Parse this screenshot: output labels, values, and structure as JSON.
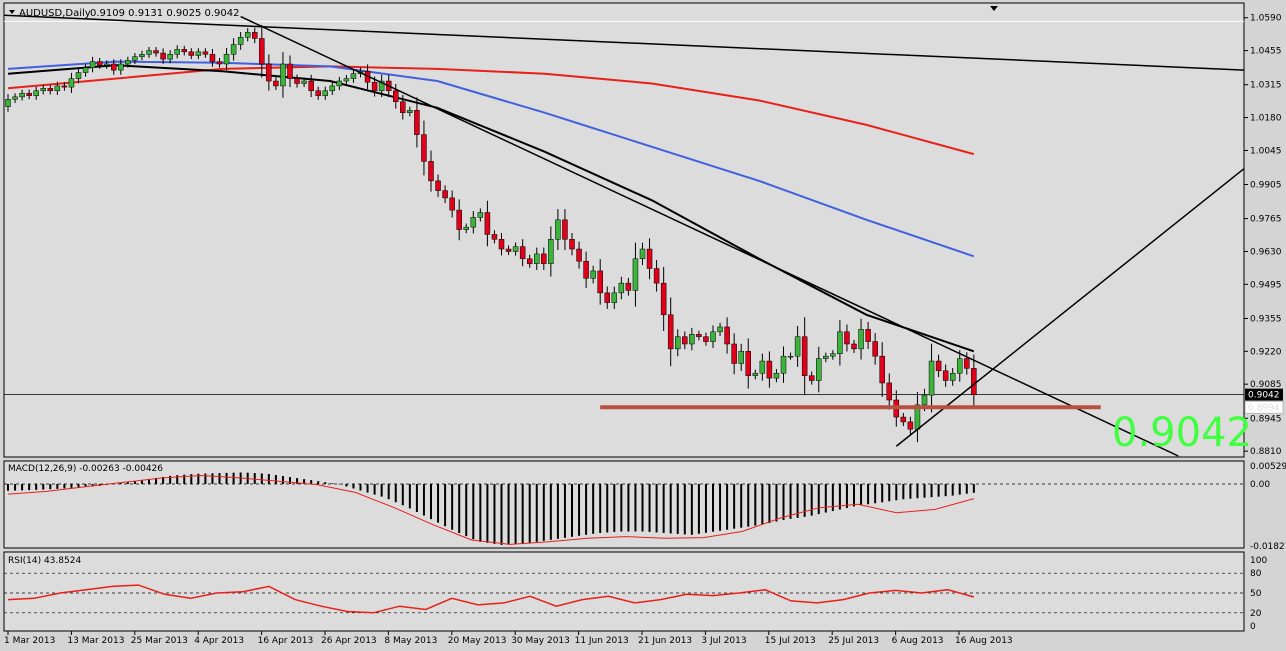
{
  "colors": {
    "panel_bg": "#dcdcdc",
    "frame": "#000000",
    "bull": "#3cb43c",
    "bear": "#e0001a",
    "ma_red": "#e8201a",
    "ma_blue": "#4060e0",
    "ma_black": "#000000",
    "support": "#b85040",
    "price_label": "#40ff40",
    "macd_signal": "#e8201a",
    "rsi_line": "#e8201a",
    "label_box": "#000000"
  },
  "header": {
    "title": "AUDUSD,Daily",
    "ohlc": "0.9109 0.9131 0.9025 0.9042",
    "menu_icon": "triangle-down-icon",
    "marker_icon": "triangle-down-icon"
  },
  "price_axis": {
    "ticks": [
      "1.0590",
      "1.0455",
      "1.0315",
      "1.0180",
      "1.0045",
      "0.9905",
      "0.9765",
      "0.9630",
      "0.9495",
      "0.9355",
      "0.9220",
      "0.9085",
      "0.8945",
      "0.8810"
    ],
    "current_label": "0.9042",
    "hidden_label": "0.8994"
  },
  "big_price": "0.9042",
  "macd": {
    "label": "MACD(12,26,9) -0.00263 -0.00426",
    "ticks": [
      "0.00529",
      "0.00",
      "-0.01827"
    ]
  },
  "rsi": {
    "label": "RSI(14) 43.8524",
    "ticks": [
      "100",
      "80",
      "50",
      "20",
      "0"
    ]
  },
  "time_axis": {
    "labels": [
      "1 Mar 2013",
      "13 Mar 2013",
      "25 Mar 2013",
      "4 Apr 2013",
      "16 Apr 2013",
      "26 Apr 2013",
      "8 May 2013",
      "20 May 2013",
      "30 May 2013",
      "11 Jun 2013",
      "21 Jun 2013",
      "3 Jul 2013",
      "15 Jul 2013",
      "25 Jul 2013",
      "6 Aug 2013",
      "16 Aug 2013"
    ]
  },
  "chart_data": {
    "type": "candlestick",
    "symbol": "AUDUSD",
    "timeframe": "Daily",
    "ylim": [
      0.879,
      1.063
    ],
    "dates_shown": [
      "1 Mar 2013",
      "13 Mar 2013",
      "25 Mar 2013",
      "4 Apr 2013",
      "16 Apr 2013",
      "26 Apr 2013",
      "8 May 2013",
      "20 May 2013",
      "30 May 2013",
      "11 Jun 2013",
      "21 Jun 2013",
      "3 Jul 2013",
      "15 Jul 2013",
      "25 Jul 2013",
      "6 Aug 2013",
      "16 Aug 2013"
    ],
    "close": [
      1.0255,
      1.0265,
      1.028,
      1.027,
      1.029,
      1.03,
      1.029,
      1.031,
      1.0305,
      1.034,
      1.0365,
      1.0385,
      1.041,
      1.0395,
      1.04,
      1.0375,
      1.04,
      1.0415,
      1.043,
      1.044,
      1.0455,
      1.0445,
      1.042,
      1.044,
      1.046,
      1.045,
      1.0435,
      1.045,
      1.044,
      1.041,
      1.04,
      1.044,
      1.048,
      1.051,
      1.053,
      1.0505,
      1.04,
      1.033,
      1.031,
      1.04,
      1.034,
      1.032,
      1.033,
      1.029,
      1.027,
      1.029,
      1.031,
      1.033,
      1.034,
      1.036,
      1.037,
      1.0325,
      1.029,
      1.033,
      1.029,
      1.0245,
      1.02,
      1.021,
      1.011,
      1.0,
      0.992,
      0.988,
      0.985,
      0.98,
      0.972,
      0.973,
      0.977,
      0.979,
      0.97,
      0.968,
      0.964,
      0.963,
      0.965,
      0.96,
      0.958,
      0.962,
      0.958,
      0.968,
      0.976,
      0.968,
      0.964,
      0.959,
      0.952,
      0.955,
      0.946,
      0.942,
      0.946,
      0.95,
      0.947,
      0.96,
      0.964,
      0.956,
      0.95,
      0.937,
      0.923,
      0.928,
      0.925,
      0.929,
      0.928,
      0.926,
      0.93,
      0.932,
      0.925,
      0.917,
      0.922,
      0.912,
      0.913,
      0.918,
      0.911,
      0.913,
      0.92,
      0.92,
      0.928,
      0.912,
      0.91,
      0.919,
      0.92,
      0.921,
      0.93,
      0.925,
      0.923,
      0.931,
      0.926,
      0.92,
      0.909,
      0.902,
      0.895,
      0.893,
      0.89,
      0.9,
      0.904,
      0.918,
      0.914,
      0.91,
      0.913,
      0.919,
      0.915,
      0.9042
    ],
    "moving_averages": [
      {
        "color": "red",
        "values": [
          1.03,
          1.034,
          1.038,
          1.039,
          1.038,
          1.036,
          1.032,
          1.025,
          1.015,
          1.003
        ]
      },
      {
        "color": "blue",
        "values": [
          1.038,
          1.041,
          1.0405,
          1.039,
          1.033,
          1.02,
          1.006,
          0.992,
          0.976,
          0.961
        ]
      },
      {
        "color": "black",
        "values": [
          1.036,
          1.0395,
          1.037,
          1.033,
          1.022,
          1.004,
          0.984,
          0.96,
          0.937,
          0.922
        ]
      }
    ],
    "support_level": 0.899,
    "current_price": 0.9042,
    "macd": {
      "range": [
        -0.01827,
        0.00529
      ],
      "histogram": [
        -0.002,
        -0.0018,
        -0.0015,
        -0.001,
        -0.0005,
        0.0005,
        0.0015,
        0.0025,
        0.003,
        0.0032,
        0.0034,
        0.003,
        0.002,
        0.001,
        0.0,
        -0.002,
        -0.004,
        -0.007,
        -0.0105,
        -0.014,
        -0.017,
        -0.018,
        -0.0175,
        -0.0165,
        -0.0155,
        -0.0145,
        -0.014,
        -0.014,
        -0.0145,
        -0.015,
        -0.014,
        -0.013,
        -0.012,
        -0.0105,
        -0.0095,
        -0.008,
        -0.0065,
        -0.0055,
        -0.0045,
        -0.004,
        -0.0035,
        -0.0026
      ],
      "signal": [
        -0.003,
        -0.0022,
        -0.0008,
        0.0005,
        0.0018,
        0.0025,
        0.0018,
        0.0008,
        -0.0002,
        -0.0025,
        -0.007,
        -0.012,
        -0.0165,
        -0.0178,
        -0.017,
        -0.016,
        -0.0155,
        -0.016,
        -0.0158,
        -0.014,
        -0.01,
        -0.007,
        -0.006,
        -0.0085,
        -0.0075,
        -0.0043
      ]
    },
    "rsi": {
      "range": [
        0,
        100
      ],
      "levels": [
        80,
        50,
        20
      ],
      "values": [
        40,
        42,
        50,
        55,
        60,
        62,
        48,
        42,
        50,
        52,
        60,
        40,
        30,
        22,
        20,
        30,
        25,
        42,
        32,
        35,
        45,
        30,
        40,
        45,
        35,
        40,
        48,
        46,
        50,
        55,
        38,
        35,
        40,
        50,
        54,
        50,
        55,
        44
      ]
    }
  }
}
